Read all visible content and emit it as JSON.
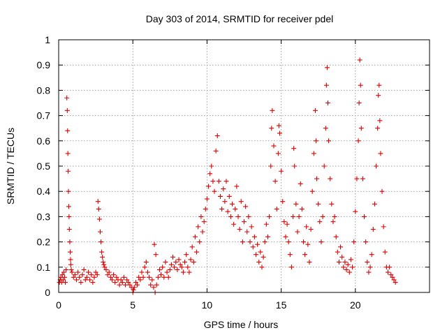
{
  "chart_data": {
    "type": "scatter",
    "title": "Day 303 of 2014, SRMTID for receiver pdel",
    "xlabel": "GPS time / hours",
    "ylabel": "SRMTID / TECUs",
    "xlim": [
      0,
      25
    ],
    "ylim": [
      0,
      1
    ],
    "xticks": [
      "0",
      "5",
      "10",
      "15",
      "20"
    ],
    "yticks": [
      "0",
      "0.1",
      "0.2",
      "0.3",
      "0.4",
      "0.5",
      "0.6",
      "0.7",
      "0.8",
      "0.9",
      "1"
    ],
    "grid": true,
    "marker": "+",
    "color": "#e00000",
    "series": [
      {
        "name": "pdel",
        "points": [
          [
            0.05,
            0.04
          ],
          [
            0.1,
            0.05
          ],
          [
            0.15,
            0.06
          ],
          [
            0.2,
            0.04
          ],
          [
            0.25,
            0.07
          ],
          [
            0.3,
            0.05
          ],
          [
            0.35,
            0.08
          ],
          [
            0.4,
            0.06
          ],
          [
            0.45,
            0.04
          ],
          [
            0.5,
            0.09
          ],
          [
            0.55,
            0.77
          ],
          [
            0.58,
            0.72
          ],
          [
            0.6,
            0.64
          ],
          [
            0.62,
            0.55
          ],
          [
            0.64,
            0.48
          ],
          [
            0.66,
            0.4
          ],
          [
            0.68,
            0.34
          ],
          [
            0.7,
            0.3
          ],
          [
            0.72,
            0.25
          ],
          [
            0.75,
            0.2
          ],
          [
            0.78,
            0.16
          ],
          [
            0.8,
            0.13
          ],
          [
            0.82,
            0.11
          ],
          [
            0.85,
            0.09
          ],
          [
            0.9,
            0.08
          ],
          [
            1.0,
            0.06
          ],
          [
            1.1,
            0.07
          ],
          [
            1.2,
            0.05
          ],
          [
            1.3,
            0.08
          ],
          [
            1.4,
            0.06
          ],
          [
            1.5,
            0.04
          ],
          [
            1.6,
            0.07
          ],
          [
            1.7,
            0.09
          ],
          [
            1.8,
            0.05
          ],
          [
            1.9,
            0.06
          ],
          [
            2.0,
            0.08
          ],
          [
            2.1,
            0.05
          ],
          [
            2.2,
            0.07
          ],
          [
            2.3,
            0.04
          ],
          [
            2.4,
            0.06
          ],
          [
            2.5,
            0.08
          ],
          [
            2.6,
            0.07
          ],
          [
            2.65,
            0.36
          ],
          [
            2.7,
            0.33
          ],
          [
            2.75,
            0.29
          ],
          [
            2.8,
            0.24
          ],
          [
            2.85,
            0.2
          ],
          [
            2.9,
            0.16
          ],
          [
            2.95,
            0.14
          ],
          [
            3.0,
            0.12
          ],
          [
            3.05,
            0.11
          ],
          [
            3.1,
            0.1
          ],
          [
            3.2,
            0.09
          ],
          [
            3.3,
            0.07
          ],
          [
            3.4,
            0.08
          ],
          [
            3.5,
            0.06
          ],
          [
            3.6,
            0.05
          ],
          [
            3.7,
            0.07
          ],
          [
            3.8,
            0.04
          ],
          [
            3.9,
            0.06
          ],
          [
            4.0,
            0.05
          ],
          [
            4.1,
            0.03
          ],
          [
            4.2,
            0.05
          ],
          [
            4.3,
            0.04
          ],
          [
            4.4,
            0.06
          ],
          [
            4.5,
            0.03
          ],
          [
            4.6,
            0.05
          ],
          [
            4.7,
            0.04
          ],
          [
            4.8,
            0.03
          ],
          [
            4.9,
            0.02
          ],
          [
            5.0,
            0.0
          ],
          [
            5.05,
            0.01
          ],
          [
            5.1,
            0.02
          ],
          [
            5.2,
            0.04
          ],
          [
            5.3,
            0.03
          ],
          [
            5.4,
            0.06
          ],
          [
            5.5,
            0.05
          ],
          [
            5.6,
            0.08
          ],
          [
            5.7,
            0.06
          ],
          [
            5.8,
            0.1
          ],
          [
            5.9,
            0.12
          ],
          [
            6.0,
            0.08
          ],
          [
            6.1,
            0.06
          ],
          [
            6.2,
            0.03
          ],
          [
            6.3,
            0.05
          ],
          [
            6.4,
            0.02
          ],
          [
            6.45,
            0.19
          ],
          [
            6.5,
            0.0
          ],
          [
            6.55,
            0.15
          ],
          [
            6.6,
            0.03
          ],
          [
            6.7,
            0.06
          ],
          [
            6.8,
            0.09
          ],
          [
            6.9,
            0.07
          ],
          [
            7.0,
            0.1
          ],
          [
            7.1,
            0.06
          ],
          [
            7.2,
            0.12
          ],
          [
            7.3,
            0.08
          ],
          [
            7.4,
            0.06
          ],
          [
            7.5,
            0.09
          ],
          [
            7.6,
            0.11
          ],
          [
            7.7,
            0.14
          ],
          [
            7.8,
            0.1
          ],
          [
            7.9,
            0.12
          ],
          [
            8.0,
            0.09
          ],
          [
            8.1,
            0.13
          ],
          [
            8.2,
            0.11
          ],
          [
            8.3,
            0.1
          ],
          [
            8.4,
            0.08
          ],
          [
            8.5,
            0.12
          ],
          [
            8.6,
            0.15
          ],
          [
            8.7,
            0.1
          ],
          [
            8.8,
            0.08
          ],
          [
            8.9,
            0.13
          ],
          [
            9.0,
            0.18
          ],
          [
            9.1,
            0.12
          ],
          [
            9.2,
            0.22
          ],
          [
            9.3,
            0.16
          ],
          [
            9.4,
            0.26
          ],
          [
            9.5,
            0.2
          ],
          [
            9.6,
            0.3
          ],
          [
            9.7,
            0.24
          ],
          [
            9.8,
            0.28
          ],
          [
            9.9,
            0.33
          ],
          [
            10.0,
            0.37
          ],
          [
            10.1,
            0.42
          ],
          [
            10.2,
            0.47
          ],
          [
            10.3,
            0.5
          ],
          [
            10.4,
            0.44
          ],
          [
            10.5,
            0.4
          ],
          [
            10.6,
            0.56
          ],
          [
            10.7,
            0.62
          ],
          [
            10.8,
            0.44
          ],
          [
            10.9,
            0.38
          ],
          [
            11.0,
            0.33
          ],
          [
            11.1,
            0.41
          ],
          [
            11.2,
            0.36
          ],
          [
            11.3,
            0.44
          ],
          [
            11.4,
            0.32
          ],
          [
            11.5,
            0.38
          ],
          [
            11.6,
            0.3
          ],
          [
            11.7,
            0.35
          ],
          [
            11.8,
            0.27
          ],
          [
            11.9,
            0.33
          ],
          [
            12.0,
            0.42
          ],
          [
            12.1,
            0.3
          ],
          [
            12.2,
            0.25
          ],
          [
            12.3,
            0.36
          ],
          [
            12.4,
            0.2
          ],
          [
            12.5,
            0.28
          ],
          [
            12.6,
            0.34
          ],
          [
            12.7,
            0.24
          ],
          [
            12.8,
            0.3
          ],
          [
            12.9,
            0.2
          ],
          [
            13.0,
            0.26
          ],
          [
            13.1,
            0.18
          ],
          [
            13.2,
            0.22
          ],
          [
            13.3,
            0.15
          ],
          [
            13.4,
            0.19
          ],
          [
            13.5,
            0.12
          ],
          [
            13.6,
            0.16
          ],
          [
            13.7,
            0.1
          ],
          [
            13.8,
            0.14
          ],
          [
            13.9,
            0.2
          ],
          [
            14.0,
            0.27
          ],
          [
            14.1,
            0.22
          ],
          [
            14.2,
            0.3
          ],
          [
            14.3,
            0.5
          ],
          [
            14.35,
            0.65
          ],
          [
            14.4,
            0.72
          ],
          [
            14.5,
            0.58
          ],
          [
            14.6,
            0.44
          ],
          [
            14.7,
            0.33
          ],
          [
            14.8,
            0.55
          ],
          [
            14.85,
            0.66
          ],
          [
            14.9,
            0.63
          ],
          [
            15.0,
            0.48
          ],
          [
            15.1,
            0.36
          ],
          [
            15.2,
            0.28
          ],
          [
            15.3,
            0.22
          ],
          [
            15.4,
            0.27
          ],
          [
            15.5,
            0.2
          ],
          [
            15.6,
            0.15
          ],
          [
            15.7,
            0.1
          ],
          [
            15.8,
            0.3
          ],
          [
            15.85,
            0.57
          ],
          [
            15.9,
            0.5
          ],
          [
            16.0,
            0.35
          ],
          [
            16.1,
            0.24
          ],
          [
            16.2,
            0.3
          ],
          [
            16.3,
            0.43
          ],
          [
            16.4,
            0.33
          ],
          [
            16.5,
            0.2
          ],
          [
            16.6,
            0.15
          ],
          [
            16.7,
            0.26
          ],
          [
            16.8,
            0.19
          ],
          [
            16.9,
            0.12
          ],
          [
            17.0,
            0.25
          ],
          [
            17.1,
            0.4
          ],
          [
            17.2,
            0.55
          ],
          [
            17.3,
            0.72
          ],
          [
            17.35,
            0.6
          ],
          [
            17.4,
            0.45
          ],
          [
            17.5,
            0.35
          ],
          [
            17.6,
            0.28
          ],
          [
            17.7,
            0.2
          ],
          [
            17.8,
            0.3
          ],
          [
            17.9,
            0.5
          ],
          [
            18.0,
            0.65
          ],
          [
            18.05,
            0.82
          ],
          [
            18.1,
            0.89
          ],
          [
            18.15,
            0.75
          ],
          [
            18.2,
            0.6
          ],
          [
            18.3,
            0.45
          ],
          [
            18.4,
            0.35
          ],
          [
            18.5,
            0.28
          ],
          [
            18.6,
            0.3
          ],
          [
            18.7,
            0.22
          ],
          [
            18.8,
            0.16
          ],
          [
            18.9,
            0.12
          ],
          [
            19.0,
            0.18
          ],
          [
            19.1,
            0.14
          ],
          [
            19.2,
            0.1
          ],
          [
            19.3,
            0.12
          ],
          [
            19.4,
            0.09
          ],
          [
            19.5,
            0.11
          ],
          [
            19.6,
            0.08
          ],
          [
            19.7,
            0.13
          ],
          [
            19.8,
            0.1
          ],
          [
            19.9,
            0.2
          ],
          [
            20.0,
            0.32
          ],
          [
            20.1,
            0.45
          ],
          [
            20.2,
            0.6
          ],
          [
            20.25,
            0.75
          ],
          [
            20.3,
            0.92
          ],
          [
            20.35,
            0.82
          ],
          [
            20.4,
            0.65
          ],
          [
            20.5,
            0.45
          ],
          [
            20.6,
            0.3
          ],
          [
            20.7,
            0.2
          ],
          [
            20.8,
            0.12
          ],
          [
            20.9,
            0.08
          ],
          [
            21.0,
            0.1
          ],
          [
            21.1,
            0.15
          ],
          [
            21.2,
            0.25
          ],
          [
            21.3,
            0.35
          ],
          [
            21.4,
            0.5
          ],
          [
            21.5,
            0.65
          ],
          [
            21.55,
            0.78
          ],
          [
            21.6,
            0.82
          ],
          [
            21.65,
            0.68
          ],
          [
            21.7,
            0.55
          ],
          [
            21.8,
            0.4
          ],
          [
            21.9,
            0.26
          ],
          [
            22.0,
            0.16
          ],
          [
            22.1,
            0.1
          ],
          [
            22.2,
            0.08
          ],
          [
            22.3,
            0.1
          ],
          [
            22.4,
            0.07
          ],
          [
            22.5,
            0.06
          ],
          [
            22.6,
            0.05
          ],
          [
            22.7,
            0.04
          ]
        ]
      }
    ]
  }
}
